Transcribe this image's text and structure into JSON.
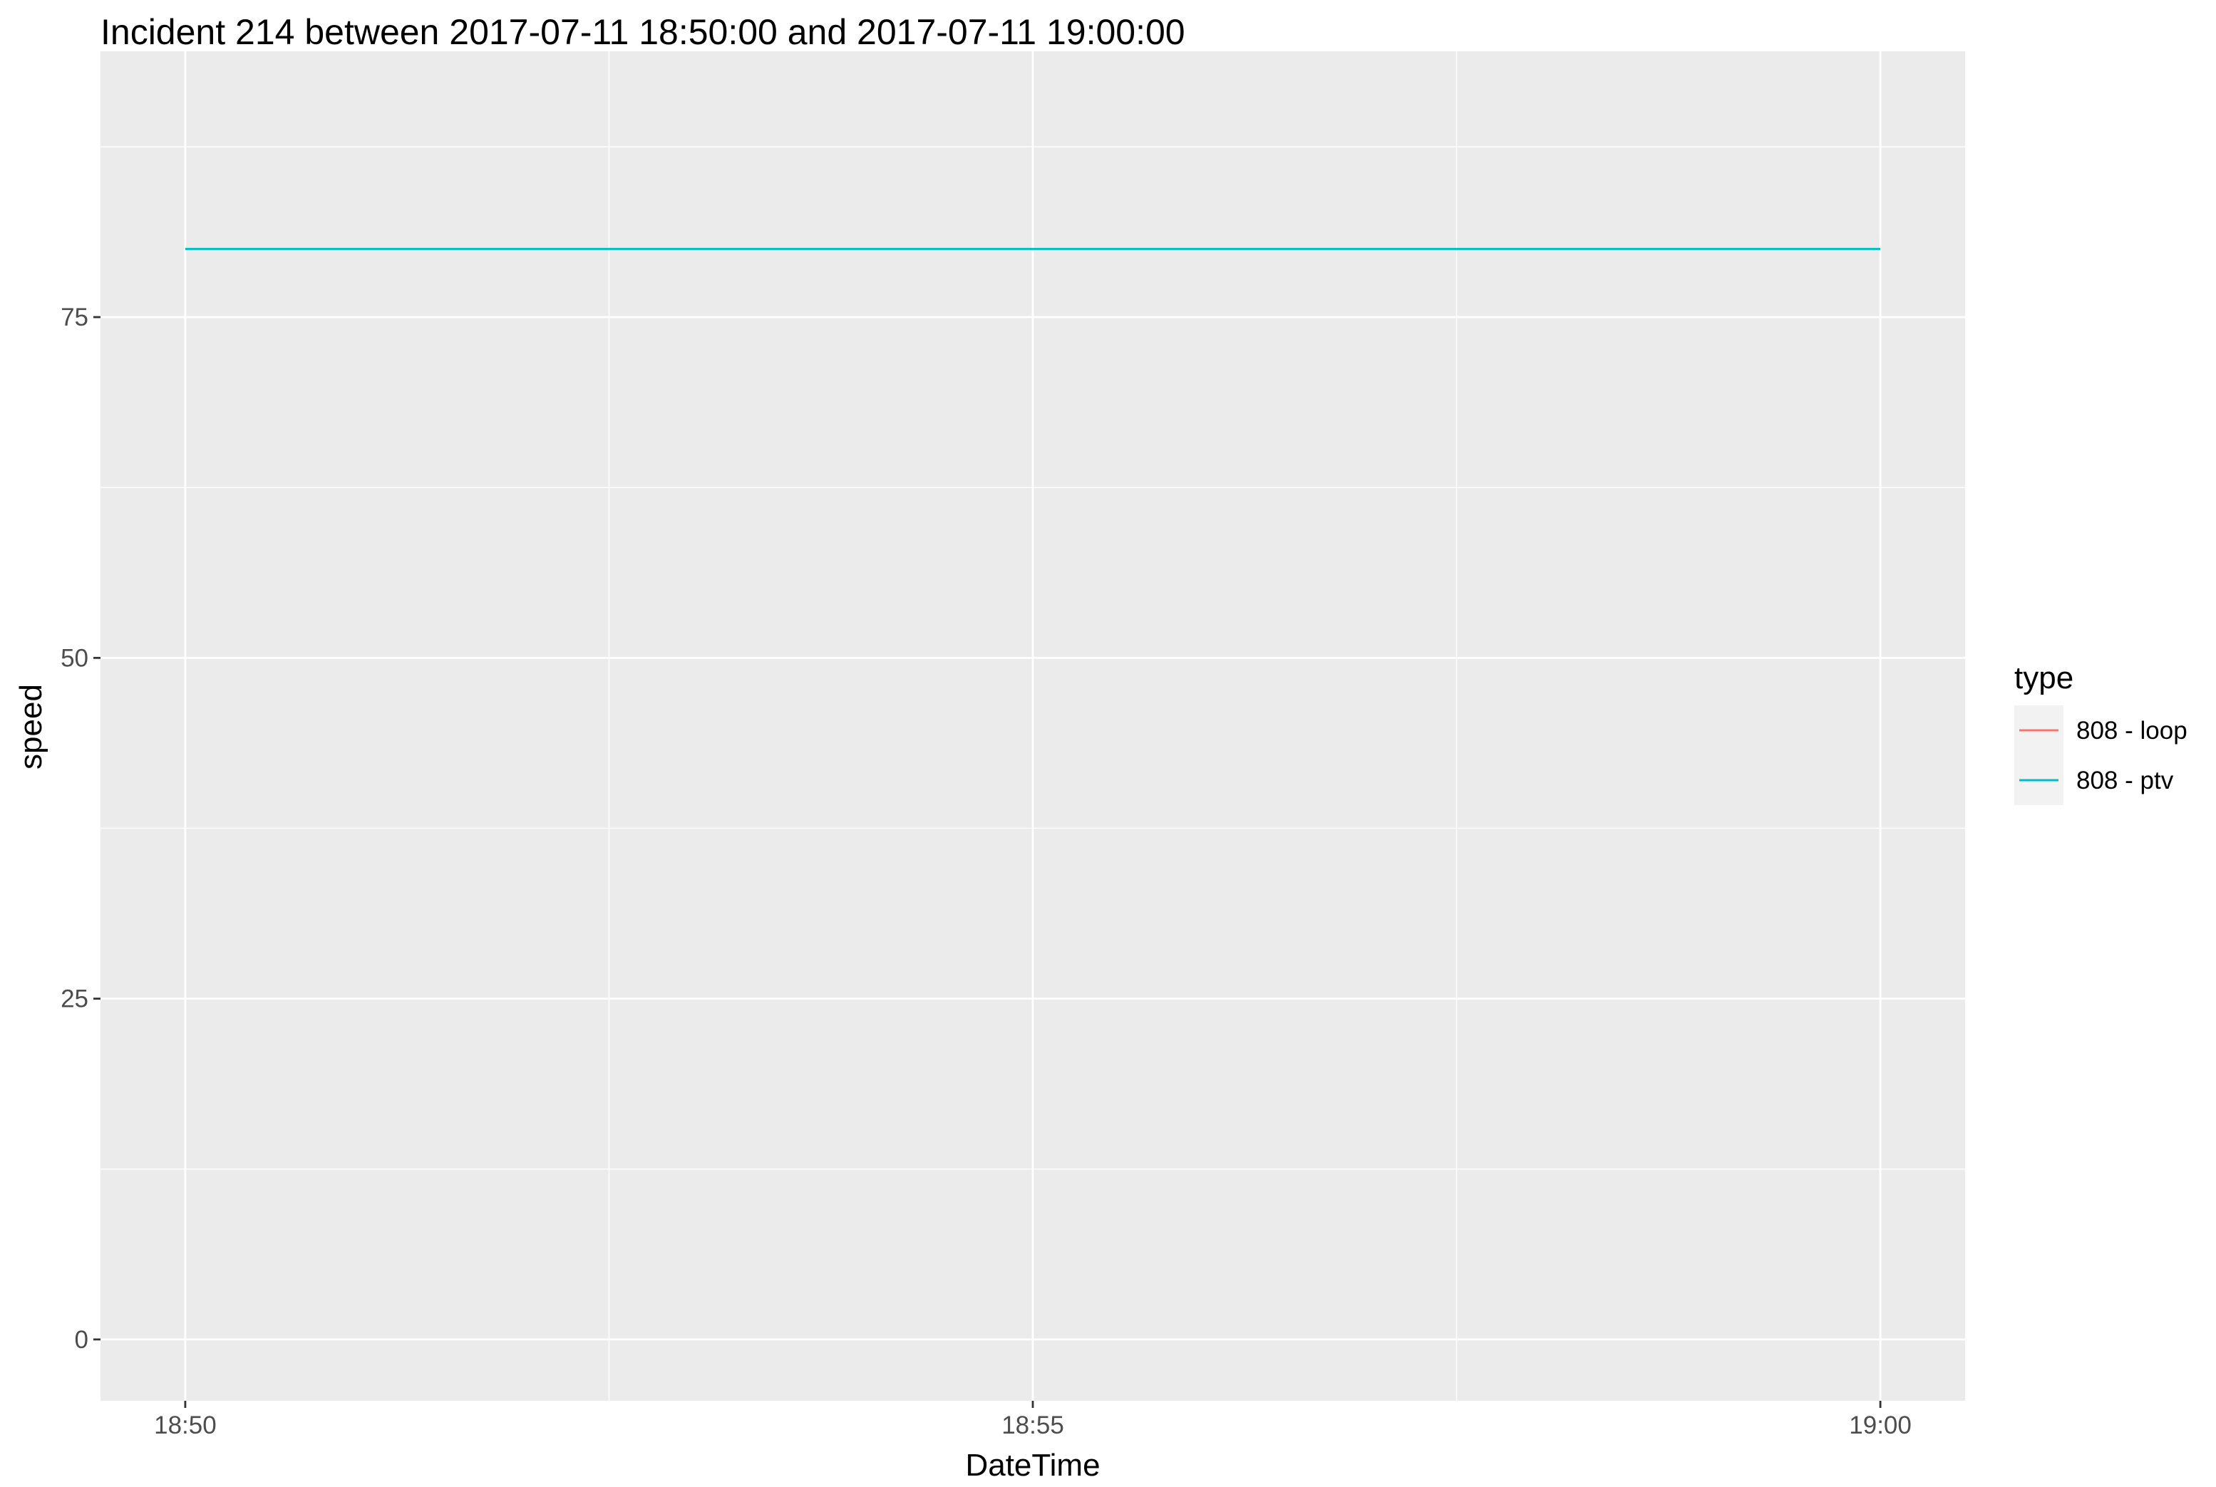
{
  "chart_data": {
    "type": "line",
    "title": "Incident 214 between 2017-07-11 18:50:00 and 2017-07-11 19:00:00",
    "xlabel": "DateTime",
    "ylabel": "speed",
    "x_ticks": [
      "18:50",
      "18:55",
      "19:00"
    ],
    "x_range": [
      "18:49:30",
      "19:00:30"
    ],
    "y_ticks": [
      0,
      25,
      50,
      75
    ],
    "ylim": [
      -4.5,
      94.5
    ],
    "grid": true,
    "legend": {
      "title": "type",
      "position": "right",
      "entries": [
        {
          "label": "808 - loop",
          "color": "#F8766D"
        },
        {
          "label": "808 - ptv",
          "color": "#00BFC4"
        }
      ]
    },
    "series": [
      {
        "name": "808 - loop",
        "color": "#F8766D",
        "points": []
      },
      {
        "name": "808 - ptv",
        "color": "#00BFC4",
        "points": [
          [
            "18:50",
            80
          ],
          [
            "19:00",
            80
          ]
        ]
      }
    ]
  }
}
